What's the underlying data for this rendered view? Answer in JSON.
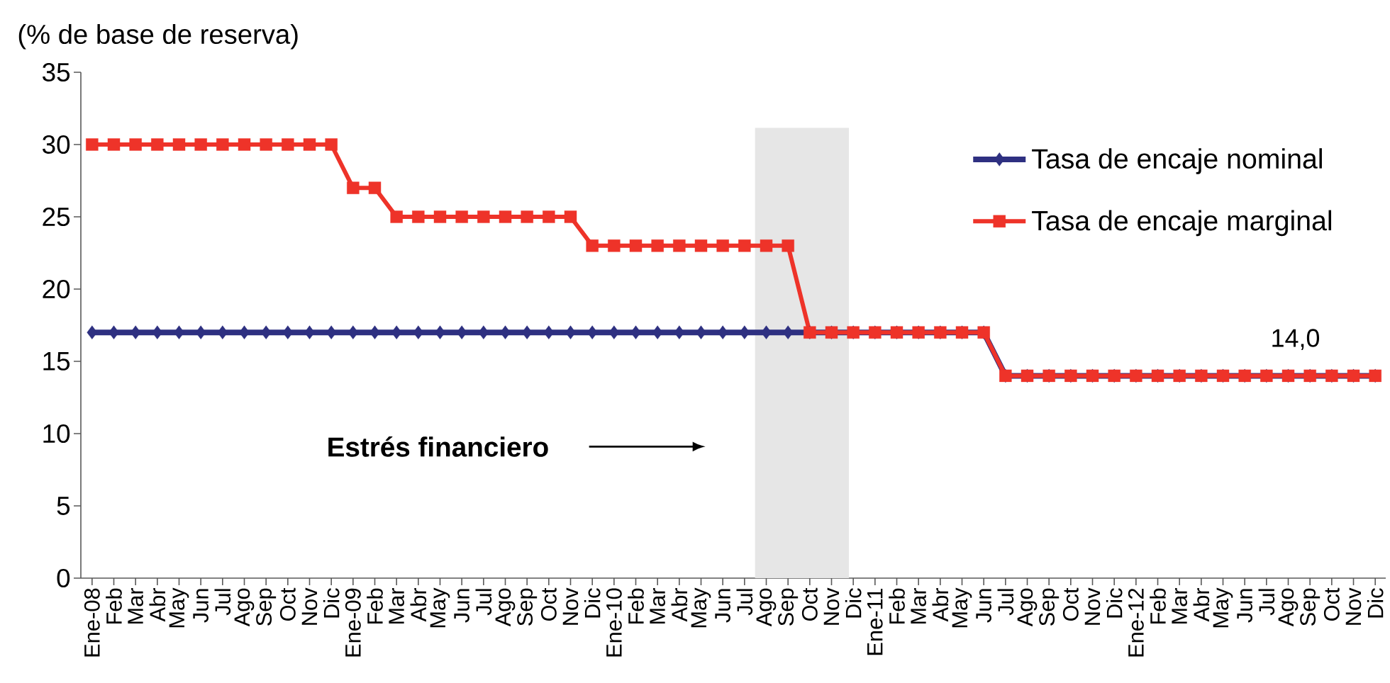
{
  "chart_data": {
    "type": "line",
    "ylabel": "(% de base de reserva)",
    "x": [
      "2008-01",
      "2008-02",
      "2008-03",
      "2008-04",
      "2008-05",
      "2008-06",
      "2008-07",
      "2008-08",
      "2008-09",
      "2008-10",
      "2008-11",
      "2008-12",
      "2009-01",
      "2009-02",
      "2009-03",
      "2009-04",
      "2009-05",
      "2009-06",
      "2009-07",
      "2009-08",
      "2009-09",
      "2009-10",
      "2009-11",
      "2009-12",
      "2010-01",
      "2010-02",
      "2010-03",
      "2010-04",
      "2010-05",
      "2010-06",
      "2010-07",
      "2010-08",
      "2010-09",
      "2010-10",
      "2010-11",
      "2010-12",
      "2011-01",
      "2011-02",
      "2011-03",
      "2011-04",
      "2011-05",
      "2011-06",
      "2011-07",
      "2011-08",
      "2011-09",
      "2011-10",
      "2011-11",
      "2011-12",
      "2012-01",
      "2012-02",
      "2012-03",
      "2012-04",
      "2012-05",
      "2012-06",
      "2012-07",
      "2012-08",
      "2012-09",
      "2012-10",
      "2012-11",
      "2012-12"
    ],
    "series": [
      {
        "name": "Tasa de encaje nominal",
        "color": "#2e3081",
        "marker": "diamond",
        "values": [
          17,
          17,
          17,
          17,
          17,
          17,
          17,
          17,
          17,
          17,
          17,
          17,
          17,
          17,
          17,
          17,
          17,
          17,
          17,
          17,
          17,
          17,
          17,
          17,
          17,
          17,
          17,
          17,
          17,
          17,
          17,
          17,
          17,
          17,
          17,
          17,
          17,
          17,
          17,
          17,
          17,
          17,
          14,
          14,
          14,
          14,
          14,
          14,
          14,
          14,
          14,
          14,
          14,
          14,
          14,
          14,
          14,
          14,
          14,
          14
        ]
      },
      {
        "name": "Tasa de encaje marginal",
        "color": "#ee3329",
        "marker": "square",
        "values": [
          30,
          30,
          30,
          30,
          30,
          30,
          30,
          30,
          30,
          30,
          30,
          30,
          27,
          27,
          25,
          25,
          25,
          25,
          25,
          25,
          25,
          25,
          25,
          23,
          23,
          23,
          23,
          23,
          23,
          23,
          23,
          23,
          23,
          17,
          17,
          17,
          17,
          17,
          17,
          17,
          17,
          17,
          14,
          14,
          14,
          14,
          14,
          14,
          14,
          14,
          14,
          14,
          14,
          14,
          14,
          14,
          14,
          14,
          14,
          14
        ]
      }
    ],
    "xlim": [
      "2007-12-16",
      "2012-12-16"
    ],
    "xticks": [
      {
        "value": "2008-01",
        "label": "Ene-08"
      },
      {
        "value": "2008-02",
        "label": "Feb"
      },
      {
        "value": "2008-03",
        "label": "Mar"
      },
      {
        "value": "2008-04",
        "label": "Abr"
      },
      {
        "value": "2008-05",
        "label": "May"
      },
      {
        "value": "2008-06",
        "label": "Jun"
      },
      {
        "value": "2008-07",
        "label": "Jul"
      },
      {
        "value": "2008-08",
        "label": "Ago"
      },
      {
        "value": "2008-09",
        "label": "Sep"
      },
      {
        "value": "2008-10",
        "label": "Oct"
      },
      {
        "value": "2008-11",
        "label": "Nov"
      },
      {
        "value": "2008-12",
        "label": "Dic"
      },
      {
        "value": "2009-01",
        "label": "Ene-09"
      },
      {
        "value": "2009-02",
        "label": "Feb"
      },
      {
        "value": "2009-03",
        "label": "Mar"
      },
      {
        "value": "2009-04",
        "label": "Abr"
      },
      {
        "value": "2009-05",
        "label": "May"
      },
      {
        "value": "2009-06",
        "label": "Jun"
      },
      {
        "value": "2009-07",
        "label": "Jul"
      },
      {
        "value": "2009-08",
        "label": "Ago"
      },
      {
        "value": "2009-09",
        "label": "Sep"
      },
      {
        "value": "2009-10",
        "label": "Oct"
      },
      {
        "value": "2009-11",
        "label": "Nov"
      },
      {
        "value": "2009-12",
        "label": "Dic"
      },
      {
        "value": "2010-01",
        "label": "Ene-10"
      },
      {
        "value": "2010-02",
        "label": "Feb"
      },
      {
        "value": "2010-03",
        "label": "Mar"
      },
      {
        "value": "2010-04",
        "label": "Abr"
      },
      {
        "value": "2010-05",
        "label": "May"
      },
      {
        "value": "2010-06",
        "label": "Jun"
      },
      {
        "value": "2010-07",
        "label": "Jul"
      },
      {
        "value": "2010-08",
        "label": "Ago"
      },
      {
        "value": "2010-09",
        "label": "Sep"
      },
      {
        "value": "2010-10",
        "label": "Oct"
      },
      {
        "value": "2010-11",
        "label": "Nov"
      },
      {
        "value": "2010-12",
        "label": "Dic"
      },
      {
        "value": "2011-01",
        "label": "Ene-11"
      },
      {
        "value": "2011-02",
        "label": "Feb"
      },
      {
        "value": "2011-03",
        "label": "Mar"
      },
      {
        "value": "2011-04",
        "label": "Abr"
      },
      {
        "value": "2011-05",
        "label": "May"
      },
      {
        "value": "2011-06",
        "label": "Jun"
      },
      {
        "value": "2011-07",
        "label": "Jul"
      },
      {
        "value": "2011-08",
        "label": "Ago"
      },
      {
        "value": "2011-09",
        "label": "Sep"
      },
      {
        "value": "2011-10",
        "label": "Oct"
      },
      {
        "value": "2011-11",
        "label": "Nov"
      },
      {
        "value": "2011-12",
        "label": "Dic"
      },
      {
        "value": "2012-01",
        "label": "Ene-12"
      },
      {
        "value": "2012-02",
        "label": "Feb"
      },
      {
        "value": "2012-03",
        "label": "Mar"
      },
      {
        "value": "2012-04",
        "label": "Abr"
      },
      {
        "value": "2012-05",
        "label": "May"
      },
      {
        "value": "2012-06",
        "label": "Jun"
      },
      {
        "value": "2012-07",
        "label": "Jul"
      },
      {
        "value": "2012-08",
        "label": "Ago"
      },
      {
        "value": "2012-09",
        "label": "Sep"
      },
      {
        "value": "2012-10",
        "label": "Oct"
      },
      {
        "value": "2012-11",
        "label": "Nov"
      },
      {
        "value": "2012-12",
        "label": "Dic"
      }
    ],
    "ylim": [
      0,
      35
    ],
    "yticks": [
      0,
      5,
      10,
      15,
      20,
      25,
      30,
      35
    ],
    "bands": [
      {
        "axis": "x",
        "from": "2010-07-16",
        "to": "2010-11-25",
        "color": "#e6e6e6"
      }
    ],
    "annotations": [
      {
        "text": "14,0",
        "x": "2012-08",
        "y": 14
      },
      "Estrés financiero"
    ],
    "legend": "top right"
  }
}
